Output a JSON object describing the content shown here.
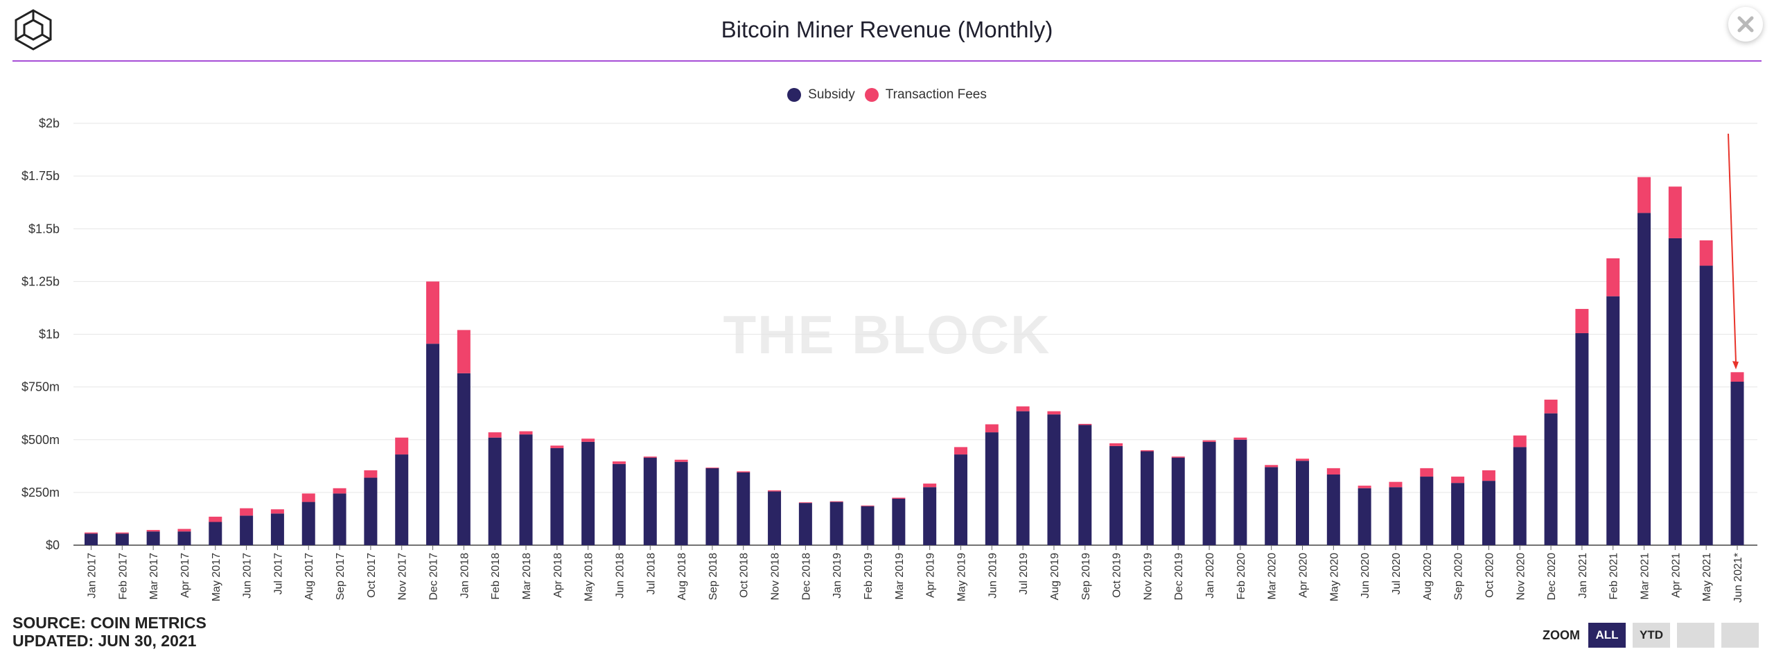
{
  "header": {
    "title": "Bitcoin Miner Revenue (Monthly)",
    "watermark": "THE BLOCK"
  },
  "source": {
    "line1": "SOURCE: COIN METRICS",
    "line2": "UPDATED: JUN 30, 2021"
  },
  "zoom": {
    "label": "ZOOM",
    "buttons": [
      {
        "label": "ALL",
        "active": true
      },
      {
        "label": "YTD",
        "active": false
      },
      {
        "label": "",
        "active": false
      },
      {
        "label": "",
        "active": false
      }
    ]
  },
  "colors": {
    "subsidy": "#2a2463",
    "fees": "#f0436b",
    "accent": "#a64dd6",
    "annotation": "#e8332a"
  },
  "icons": {
    "logo": "the-block-cube-logo",
    "close": "close-icon"
  },
  "chart_data": {
    "type": "bar",
    "stacked": true,
    "title": "Bitcoin Miner Revenue (Monthly)",
    "xlabel": "",
    "ylabel": "",
    "ylim": [
      0,
      2000000000
    ],
    "y_ticks": [
      {
        "value": 0,
        "label": "$0"
      },
      {
        "value": 250000000,
        "label": "$250m"
      },
      {
        "value": 500000000,
        "label": "$500m"
      },
      {
        "value": 750000000,
        "label": "$750m"
      },
      {
        "value": 1000000000,
        "label": "$1b"
      },
      {
        "value": 1250000000,
        "label": "$1.25b"
      },
      {
        "value": 1500000000,
        "label": "$1.5b"
      },
      {
        "value": 1750000000,
        "label": "$1.75b"
      },
      {
        "value": 2000000000,
        "label": "$2b"
      }
    ],
    "grid": true,
    "legend_position": "top-center",
    "categories": [
      "Jan 2017",
      "Feb 2017",
      "Mar 2017",
      "Apr 2017",
      "May 2017",
      "Jun 2017",
      "Jul 2017",
      "Aug 2017",
      "Sep 2017",
      "Oct 2017",
      "Nov 2017",
      "Dec 2017",
      "Jan 2018",
      "Feb 2018",
      "Mar 2018",
      "Apr 2018",
      "May 2018",
      "Jun 2018",
      "Jul 2018",
      "Aug 2018",
      "Sep 2018",
      "Oct 2018",
      "Nov 2018",
      "Dec 2018",
      "Jan 2019",
      "Feb 2019",
      "Mar 2019",
      "Apr 2019",
      "May 2019",
      "Jun 2019",
      "Jul 2019",
      "Aug 2019",
      "Sep 2019",
      "Oct 2019",
      "Nov 2019",
      "Dec 2019",
      "Jan 2020",
      "Feb 2020",
      "Mar 2020",
      "Apr 2020",
      "May 2020",
      "Jun 2020",
      "Jul 2020",
      "Aug 2020",
      "Sep 2020",
      "Oct 2020",
      "Nov 2020",
      "Dec 2020",
      "Jan 2021",
      "Feb 2021",
      "Mar 2021",
      "Apr 2021",
      "May 2021",
      "Jun 2021*"
    ],
    "series": [
      {
        "name": "Subsidy",
        "values": [
          55000000,
          55000000,
          65000000,
          65000000,
          110000000,
          140000000,
          150000000,
          205000000,
          245000000,
          320000000,
          430000000,
          955000000,
          815000000,
          510000000,
          525000000,
          460000000,
          490000000,
          385000000,
          415000000,
          395000000,
          365000000,
          345000000,
          255000000,
          200000000,
          205000000,
          185000000,
          220000000,
          275000000,
          430000000,
          535000000,
          635000000,
          620000000,
          570000000,
          470000000,
          445000000,
          415000000,
          490000000,
          500000000,
          370000000,
          400000000,
          335000000,
          270000000,
          275000000,
          325000000,
          295000000,
          305000000,
          465000000,
          625000000,
          1005000000,
          1180000000,
          1575000000,
          1455000000,
          1325000000,
          775000000
        ]
      },
      {
        "name": "Transaction Fees",
        "values": [
          5000000,
          5000000,
          7000000,
          12000000,
          25000000,
          35000000,
          20000000,
          40000000,
          25000000,
          35000000,
          80000000,
          295000000,
          205000000,
          25000000,
          15000000,
          12000000,
          15000000,
          12000000,
          5000000,
          10000000,
          3000000,
          5000000,
          5000000,
          3000000,
          3000000,
          3000000,
          5000000,
          17000000,
          35000000,
          38000000,
          23000000,
          15000000,
          5000000,
          13000000,
          5000000,
          5000000,
          7000000,
          10000000,
          10000000,
          10000000,
          30000000,
          12000000,
          25000000,
          40000000,
          30000000,
          50000000,
          55000000,
          65000000,
          115000000,
          180000000,
          170000000,
          245000000,
          120000000,
          45000000
        ]
      }
    ],
    "annotations": [
      {
        "type": "arrow",
        "points_to": "Jun 2021*"
      }
    ]
  }
}
